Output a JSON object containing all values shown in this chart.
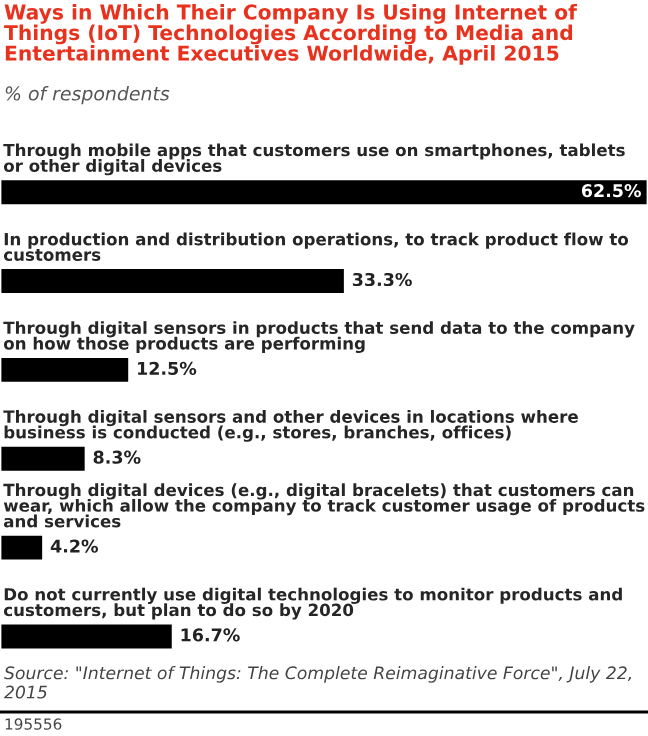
{
  "chart_data": {
    "type": "bar",
    "orientation": "horizontal",
    "title": "Ways in Which Their Company Is Using Internet of Things (IoT) Technologies According to Media and Entertainment Executives Worldwide, April 2015",
    "subtitle": "% of respondents",
    "categories": [
      "Through mobile apps that customers use on smartphones, tablets or other digital devices",
      "In production and distribution operations, to track product flow to customers",
      "Through digital sensors in products that send data to the company on how those products are performing",
      "Through digital sensors and other devices in locations where business is conducted (e.g., stores, branches, offices)",
      "Through digital devices (e.g., digital bracelets) that customers can wear, which allow the company to track customer usage of products and services",
      "Do not currently use digital technologies to monitor products and customers, but plan to do so by 2020"
    ],
    "values": [
      62.5,
      33.3,
      12.5,
      8.3,
      4.2,
      16.7
    ],
    "color": "#000000",
    "value_labels": [
      "62.5%",
      "33.3%",
      "12.5%",
      "8.3%",
      "4.2%",
      "16.7%"
    ],
    "annotations": [
      "Source: \"Internet of Things: The Complete Reimaginative Force\", July 22, 2015",
      "195556"
    ]
  }
}
